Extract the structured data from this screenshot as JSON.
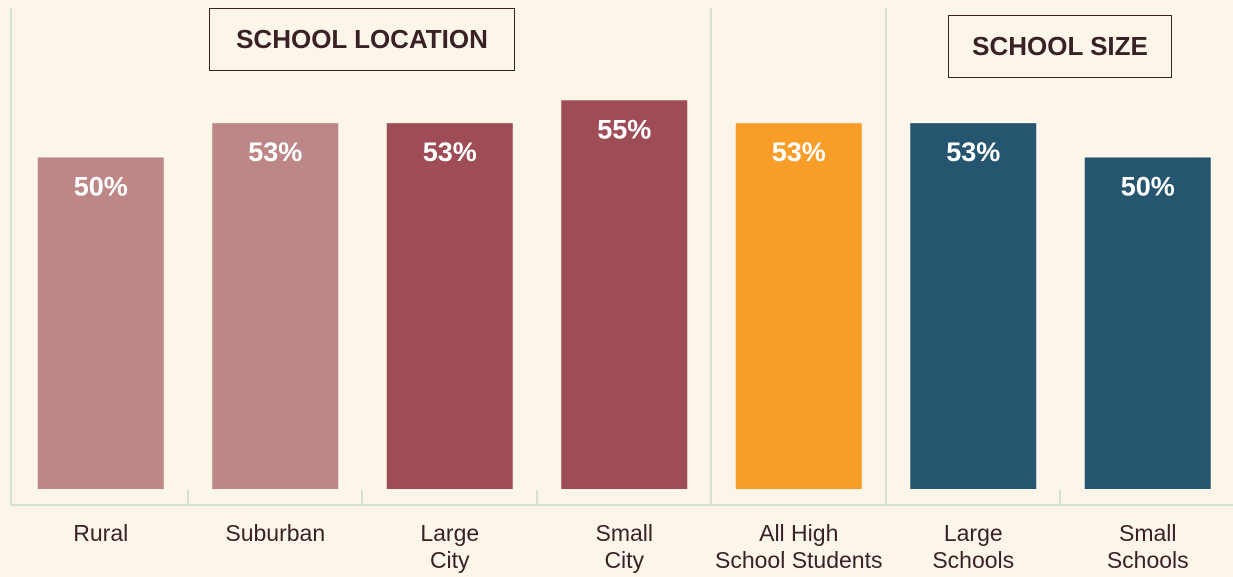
{
  "chart_data": {
    "type": "bar",
    "groups": [
      "SCHOOL LOCATION",
      "SCHOOL SIZE"
    ],
    "categories": [
      "Rural",
      "Suburban",
      "Large\nCity",
      "Small\nCity",
      "All High\nSchool Students",
      "Large\nSchools",
      "Small\nSchools"
    ],
    "values": [
      50,
      53,
      53,
      55,
      53,
      53,
      50
    ],
    "value_labels": [
      "50%",
      "53%",
      "53%",
      "55%",
      "53%",
      "53%",
      "50%"
    ],
    "colors": [
      "#bc8786",
      "#bc8786",
      "#9e4c55",
      "#9e4c55",
      "#f89d28",
      "#26566f",
      "#26566f"
    ],
    "ylim": [
      21,
      58
    ]
  }
}
